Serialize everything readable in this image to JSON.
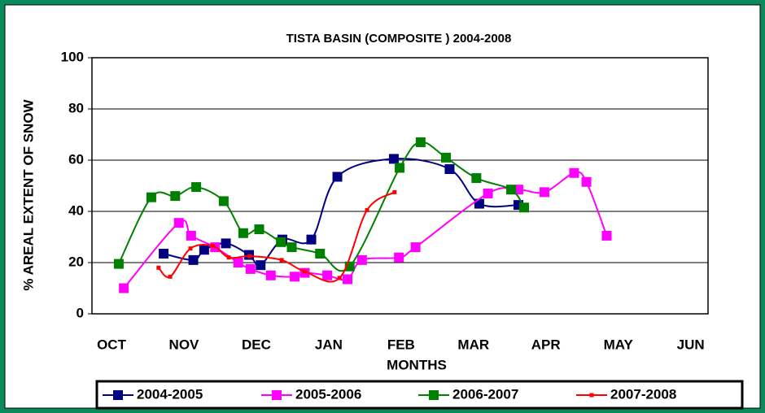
{
  "chart_data": {
    "type": "line",
    "title": "TISTA BASIN (COMPOSITE ) 2004-2008",
    "x_label": "MONTHS",
    "y_label": "% AREAL EXTENT OF SNOW",
    "xlim": [
      -0.27,
      8.24
    ],
    "xticks": [
      {
        "value": 0,
        "label": "OCT"
      },
      {
        "value": 1,
        "label": "NOV"
      },
      {
        "value": 2,
        "label": "DEC"
      },
      {
        "value": 3,
        "label": "JAN"
      },
      {
        "value": 4,
        "label": "FEB"
      },
      {
        "value": 5,
        "label": "MAR"
      },
      {
        "value": 6,
        "label": "APR"
      },
      {
        "value": 7,
        "label": "MAY"
      },
      {
        "value": 8,
        "label": "JUN"
      }
    ],
    "ylim": [
      0,
      100
    ],
    "yticks": [
      0,
      20,
      40,
      60,
      80,
      100
    ],
    "grid": true,
    "legend": "bottom",
    "series": [
      {
        "name": "2004-2005",
        "color": "#000080",
        "x": [
          0.72,
          1.13,
          1.28,
          1.58,
          1.9,
          2.06,
          2.36,
          2.76,
          3.12,
          3.9,
          4.67,
          5.08,
          5.62
        ],
        "values": [
          23.5,
          21,
          25,
          27.5,
          23,
          19,
          29,
          29,
          53.5,
          60.5,
          56.5,
          43,
          42.5
        ]
      },
      {
        "name": "2005-2006",
        "color": "#ff00ff",
        "x": [
          0.17,
          0.93,
          1.1,
          1.43,
          1.75,
          1.92,
          2.2,
          2.53,
          2.67,
          2.98,
          3.26,
          3.46,
          3.97,
          4.2,
          5.2,
          5.62,
          5.98,
          6.39,
          6.56,
          6.84
        ],
        "values": [
          10,
          35.5,
          30.5,
          26,
          20,
          17.5,
          15,
          14.5,
          16,
          15,
          13.5,
          21,
          22,
          26,
          47,
          48.5,
          47.5,
          55,
          51.5,
          30.5
        ]
      },
      {
        "name": "2006-2007",
        "color": "#008000",
        "x": [
          0.1,
          0.55,
          0.88,
          1.17,
          1.55,
          1.82,
          2.04,
          2.34,
          2.49,
          2.88,
          3.29,
          3.98,
          4.27,
          4.62,
          5.04,
          5.52,
          5.7
        ],
        "values": [
          19.5,
          45.5,
          46,
          49.5,
          44,
          31.5,
          33,
          28,
          26,
          23.5,
          18.5,
          57,
          67,
          61,
          53,
          48.5,
          41.5
        ]
      },
      {
        "name": "2007-2008",
        "color": "#ff0000",
        "x": [
          0.65,
          0.81,
          1.09,
          1.4,
          1.62,
          1.91,
          2.35,
          2.67,
          3.15,
          3.53,
          3.91
        ],
        "values": [
          18,
          14.5,
          25.5,
          26.5,
          22,
          22.5,
          21,
          16.5,
          14,
          40.5,
          47.5
        ]
      }
    ]
  }
}
